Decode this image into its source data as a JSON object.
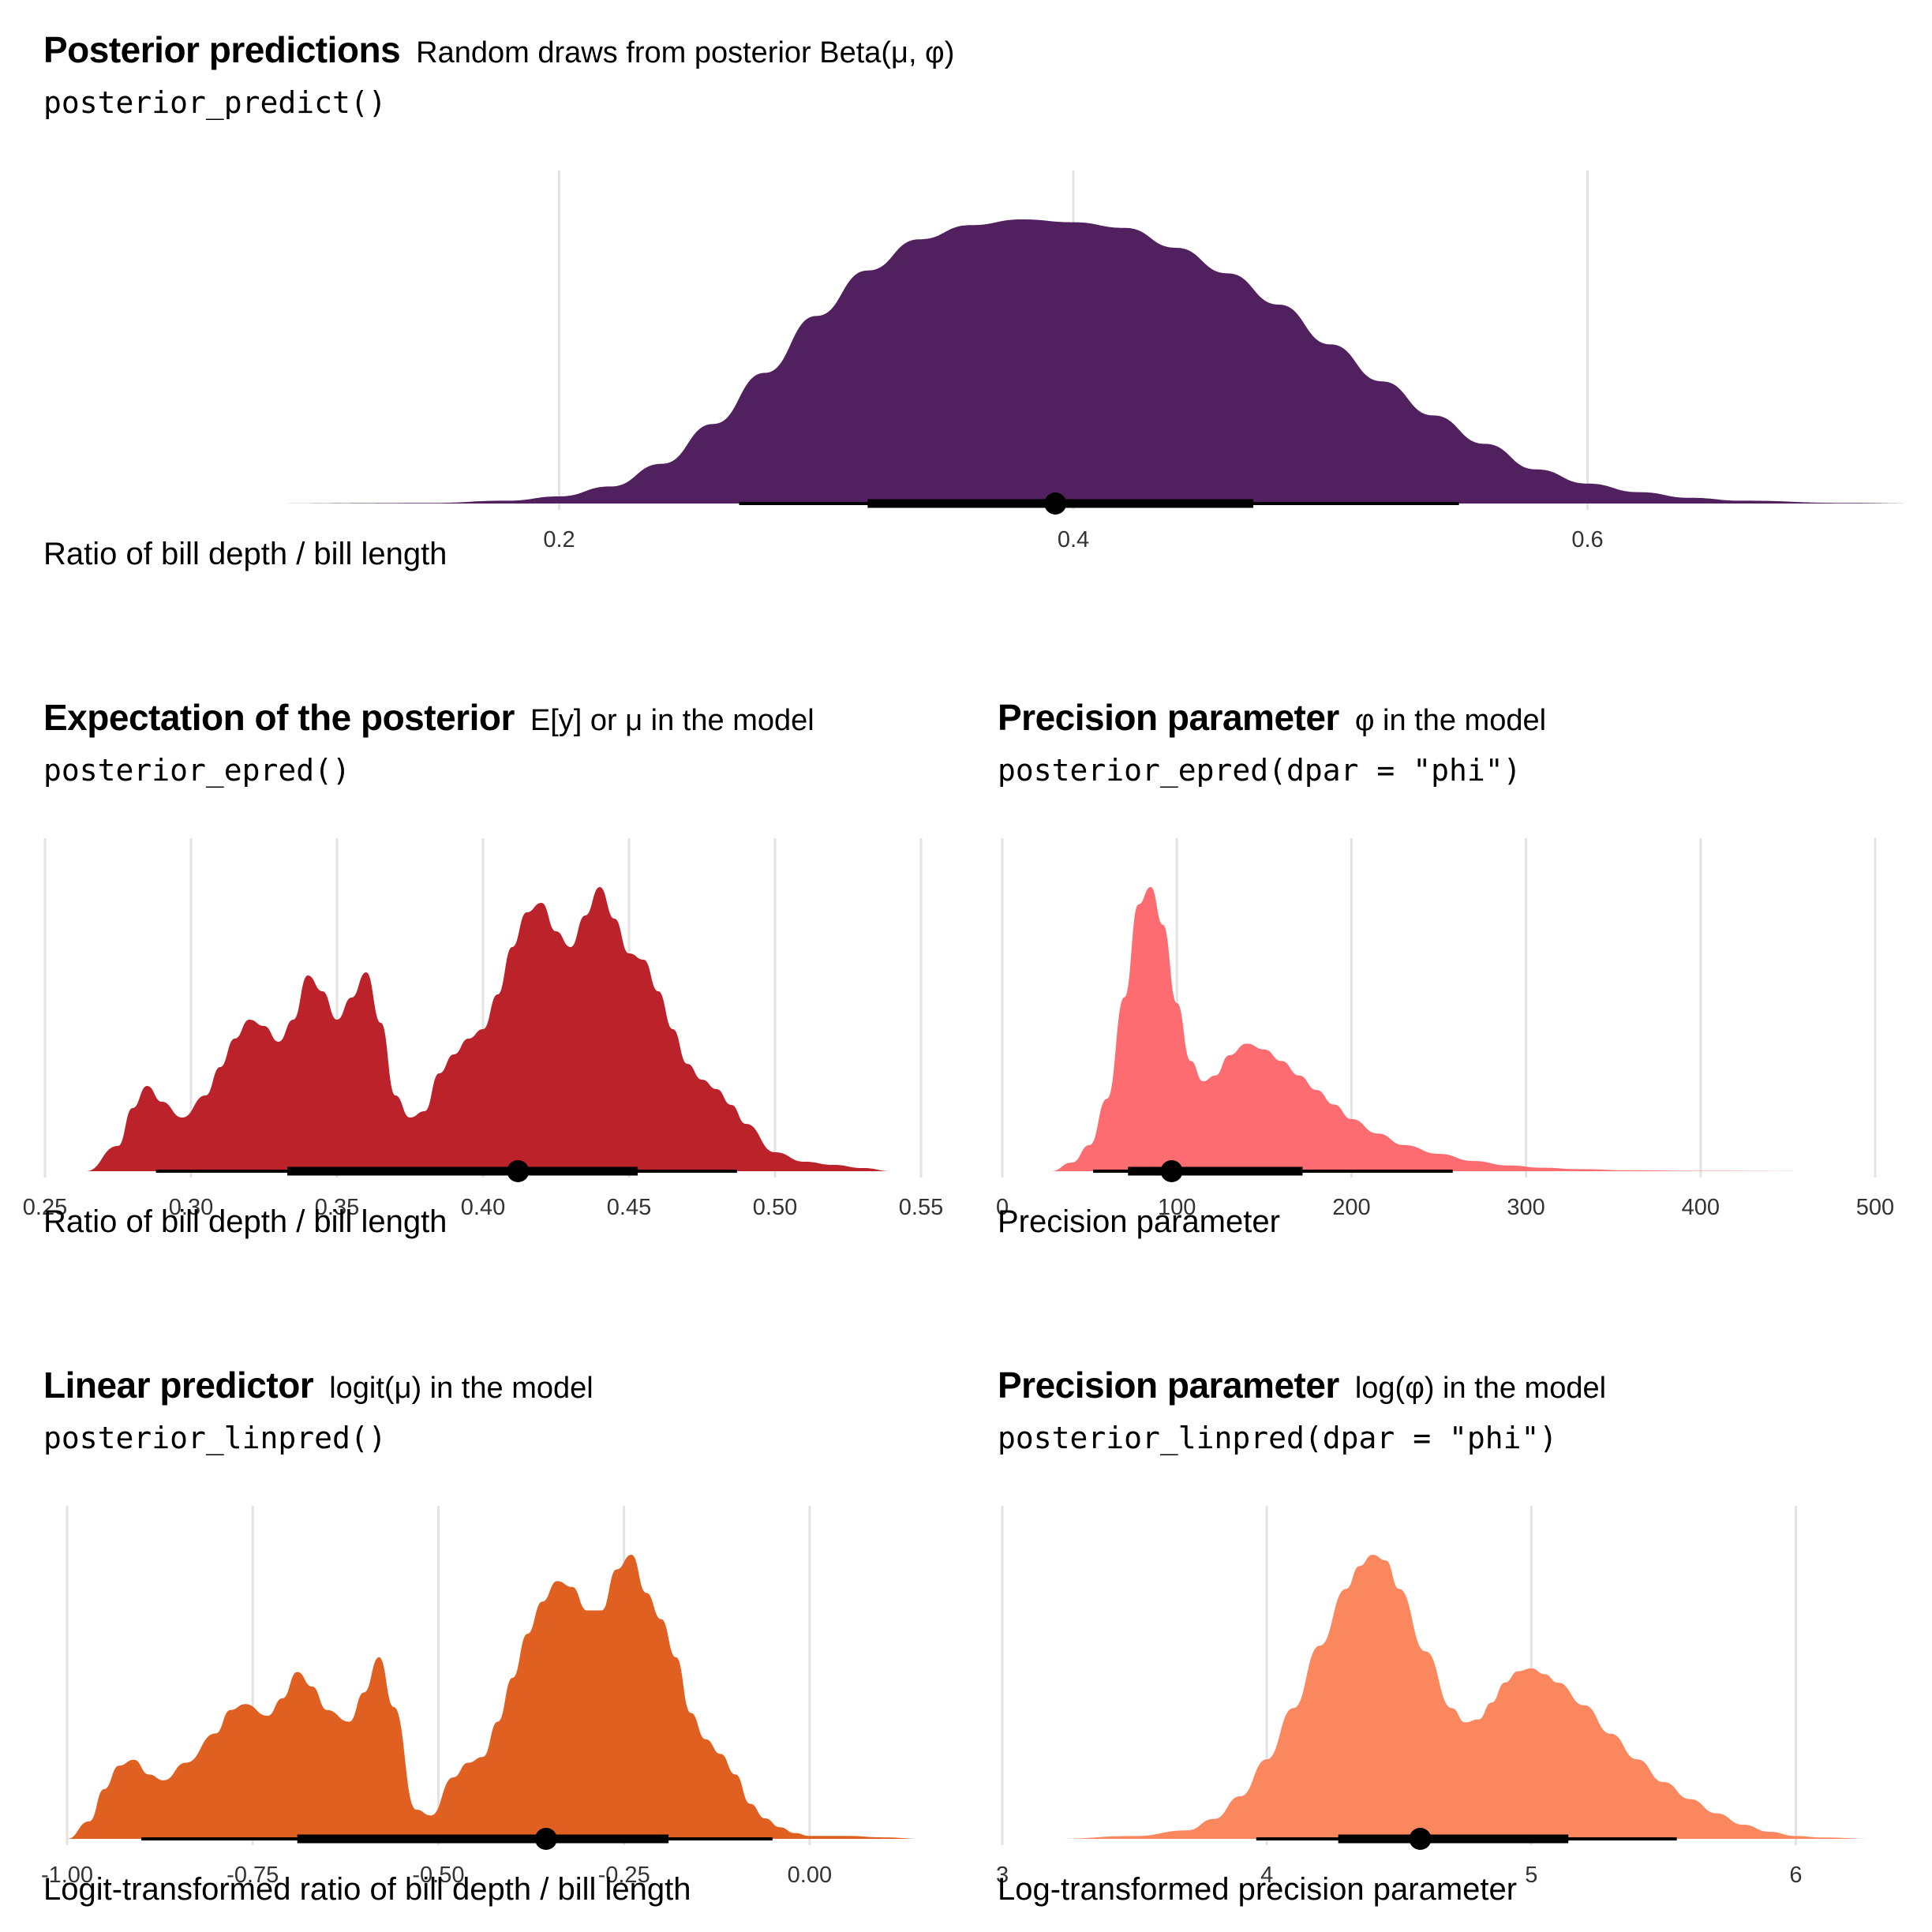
{
  "panels": [
    {
      "id": "predict",
      "title": "Posterior predictions",
      "subtitle": "Random draws from posterior Beta(μ, φ)",
      "code": "posterior_predict()",
      "xlabel": "Ratio of bill depth / bill length",
      "fill": "#51205E"
    },
    {
      "id": "epred",
      "title": "Expectation of the posterior",
      "subtitle": "E[y] or μ in the model",
      "code": "posterior_epred()",
      "xlabel": "Ratio of bill depth / bill length",
      "fill": "#BB2229"
    },
    {
      "id": "phi",
      "title": "Precision parameter",
      "subtitle": "φ in the model",
      "code": "posterior_epred(dpar = \"phi\")",
      "xlabel": "Precision parameter",
      "fill": "#FC6C70"
    },
    {
      "id": "linpred",
      "title": "Linear predictor",
      "subtitle": "logit(μ) in the model",
      "code": "posterior_linpred()",
      "xlabel": "Logit-transformed ratio of bill depth / bill length",
      "fill": "#E06021"
    },
    {
      "id": "logphi",
      "title": "Precision parameter",
      "subtitle": "log(φ) in the model",
      "code": "posterior_linpred(dpar = \"phi\")",
      "xlabel": "Log-transformed precision parameter",
      "fill": "#FB875E"
    }
  ],
  "chart_data": [
    {
      "type": "area",
      "title": "Posterior predictions",
      "subtitle": "Random draws from posterior Beta(μ, φ)",
      "xlabel": "Ratio of bill depth / bill length",
      "ylabel": "",
      "xlim": [
        0.07,
        0.73
      ],
      "xticks": [
        0.2,
        0.4,
        0.6
      ],
      "xtick_labels": [
        "0.2",
        "0.4",
        "0.6"
      ],
      "grid": true,
      "density": {
        "x": [
          0.07,
          0.15,
          0.18,
          0.2,
          0.22,
          0.24,
          0.26,
          0.28,
          0.3,
          0.32,
          0.34,
          0.36,
          0.38,
          0.4,
          0.42,
          0.44,
          0.46,
          0.48,
          0.5,
          0.52,
          0.54,
          0.56,
          0.58,
          0.6,
          0.62,
          0.64,
          0.66,
          0.7,
          0.73
        ],
        "y": [
          0,
          0.002,
          0.01,
          0.025,
          0.06,
          0.14,
          0.28,
          0.46,
          0.66,
          0.82,
          0.93,
          0.98,
          1.0,
          0.99,
          0.97,
          0.9,
          0.81,
          0.7,
          0.56,
          0.43,
          0.31,
          0.21,
          0.12,
          0.07,
          0.04,
          0.02,
          0.01,
          0.002,
          0
        ]
      },
      "point_estimate": 0.393,
      "interval_66": [
        0.32,
        0.47
      ],
      "interval_95": [
        0.27,
        0.55
      ]
    },
    {
      "type": "area",
      "title": "Expectation of the posterior",
      "subtitle": "E[y] or μ in the model",
      "xlabel": "Ratio of bill depth / bill length",
      "ylabel": "",
      "xlim": [
        0.25,
        0.55
      ],
      "xticks": [
        0.25,
        0.3,
        0.35,
        0.4,
        0.45,
        0.5,
        0.55
      ],
      "xtick_labels": [
        "0.25",
        "0.30",
        "0.35",
        "0.40",
        "0.45",
        "0.50",
        "0.55"
      ],
      "grid": true,
      "density": {
        "x": [
          0.264,
          0.275,
          0.28,
          0.285,
          0.29,
          0.297,
          0.305,
          0.31,
          0.315,
          0.32,
          0.325,
          0.33,
          0.335,
          0.34,
          0.345,
          0.35,
          0.355,
          0.36,
          0.365,
          0.37,
          0.375,
          0.38,
          0.385,
          0.39,
          0.395,
          0.4,
          0.405,
          0.41,
          0.415,
          0.42,
          0.425,
          0.43,
          0.435,
          0.44,
          0.445,
          0.45,
          0.455,
          0.46,
          0.465,
          0.47,
          0.475,
          0.48,
          0.485,
          0.49,
          0.5,
          0.51,
          0.52,
          0.53,
          0.54
        ],
        "y": [
          0,
          0.08,
          0.2,
          0.27,
          0.22,
          0.17,
          0.24,
          0.33,
          0.42,
          0.48,
          0.46,
          0.41,
          0.48,
          0.62,
          0.57,
          0.48,
          0.55,
          0.63,
          0.47,
          0.24,
          0.17,
          0.19,
          0.31,
          0.37,
          0.42,
          0.45,
          0.56,
          0.71,
          0.82,
          0.85,
          0.76,
          0.71,
          0.81,
          0.9,
          0.8,
          0.69,
          0.67,
          0.57,
          0.45,
          0.34,
          0.29,
          0.26,
          0.21,
          0.15,
          0.06,
          0.03,
          0.02,
          0.01,
          0
        ]
      },
      "point_estimate": 0.412,
      "interval_66": [
        0.333,
        0.453
      ],
      "interval_95": [
        0.288,
        0.487
      ]
    },
    {
      "type": "area",
      "title": "Precision parameter",
      "subtitle": "φ in the model",
      "xlabel": "Precision parameter",
      "ylabel": "",
      "xlim": [
        0,
        500
      ],
      "xticks": [
        0,
        100,
        200,
        300,
        400,
        500
      ],
      "xtick_labels": [
        "0",
        "100",
        "200",
        "300",
        "400",
        "500"
      ],
      "grid": true,
      "density": {
        "x": [
          28,
          40,
          50,
          60,
          70,
          78,
          85,
          92,
          100,
          108,
          115,
          122,
          130,
          140,
          150,
          160,
          170,
          180,
          190,
          200,
          215,
          230,
          250,
          270,
          290,
          310,
          330,
          360,
          400,
          480
        ],
        "y": [
          0,
          0.03,
          0.09,
          0.25,
          0.6,
          0.92,
          0.98,
          0.85,
          0.58,
          0.38,
          0.31,
          0.33,
          0.4,
          0.44,
          0.42,
          0.38,
          0.33,
          0.28,
          0.23,
          0.18,
          0.13,
          0.09,
          0.06,
          0.035,
          0.02,
          0.012,
          0.007,
          0.003,
          0.001,
          0
        ]
      },
      "point_estimate": 97,
      "interval_66": [
        72,
        172
      ],
      "interval_95": [
        52,
        258
      ]
    },
    {
      "type": "area",
      "title": "Linear predictor",
      "subtitle": "logit(μ) in the model",
      "xlabel": "Logit-transformed ratio of bill depth / bill length",
      "ylabel": "",
      "xlim": [
        -1.0,
        0.15
      ],
      "xticks": [
        -1.0,
        -0.75,
        -0.5,
        -0.25,
        0.0
      ],
      "xtick_labels": [
        "-1.00",
        "-0.75",
        "-0.50",
        "-0.25",
        "0.00"
      ],
      "grid": true,
      "density": {
        "x": [
          -1.0,
          -0.97,
          -0.95,
          -0.93,
          -0.91,
          -0.89,
          -0.87,
          -0.84,
          -0.8,
          -0.78,
          -0.76,
          -0.73,
          -0.71,
          -0.69,
          -0.67,
          -0.65,
          -0.62,
          -0.6,
          -0.58,
          -0.56,
          -0.53,
          -0.51,
          -0.48,
          -0.46,
          -0.44,
          -0.42,
          -0.4,
          -0.38,
          -0.36,
          -0.34,
          -0.32,
          -0.3,
          -0.28,
          -0.26,
          -0.24,
          -0.22,
          -0.2,
          -0.18,
          -0.16,
          -0.14,
          -0.12,
          -0.1,
          -0.08,
          -0.06,
          -0.04,
          -0.02,
          0.0,
          0.05,
          0.1,
          0.15
        ],
        "y": [
          0,
          0.06,
          0.17,
          0.25,
          0.27,
          0.22,
          0.2,
          0.26,
          0.36,
          0.44,
          0.46,
          0.42,
          0.48,
          0.57,
          0.52,
          0.44,
          0.4,
          0.5,
          0.62,
          0.45,
          0.1,
          0.08,
          0.21,
          0.26,
          0.28,
          0.4,
          0.55,
          0.7,
          0.81,
          0.88,
          0.86,
          0.78,
          0.78,
          0.92,
          0.97,
          0.84,
          0.75,
          0.62,
          0.43,
          0.34,
          0.29,
          0.22,
          0.12,
          0.07,
          0.04,
          0.02,
          0.01,
          0.01,
          0.005,
          0
        ]
      },
      "point_estimate": -0.355,
      "interval_66": [
        -0.69,
        -0.19
      ],
      "interval_95": [
        -0.9,
        -0.05
      ]
    },
    {
      "type": "area",
      "title": "Precision parameter",
      "subtitle": "log(φ) in the model",
      "xlabel": "Log-transformed precision parameter",
      "ylabel": "",
      "xlim": [
        3,
        6.3
      ],
      "xticks": [
        3,
        4,
        5,
        6
      ],
      "xtick_labels": [
        "3",
        "4",
        "5",
        "6"
      ],
      "grid": true,
      "density": {
        "x": [
          3.2,
          3.5,
          3.7,
          3.8,
          3.9,
          4.0,
          4.1,
          4.2,
          4.3,
          4.35,
          4.4,
          4.45,
          4.5,
          4.6,
          4.7,
          4.75,
          4.8,
          4.85,
          4.9,
          4.95,
          5.0,
          5.05,
          5.1,
          5.2,
          5.3,
          5.4,
          5.5,
          5.6,
          5.7,
          5.8,
          5.9,
          6.0,
          6.1,
          6.3
        ],
        "y": [
          0,
          0.01,
          0.03,
          0.07,
          0.15,
          0.28,
          0.46,
          0.68,
          0.88,
          0.96,
          1.0,
          0.98,
          0.88,
          0.66,
          0.46,
          0.41,
          0.42,
          0.48,
          0.55,
          0.59,
          0.6,
          0.58,
          0.55,
          0.47,
          0.37,
          0.28,
          0.2,
          0.14,
          0.09,
          0.05,
          0.025,
          0.01,
          0.005,
          0
        ]
      },
      "point_estimate": 4.58,
      "interval_66": [
        4.27,
        5.14
      ],
      "interval_95": [
        3.96,
        5.55
      ]
    }
  ]
}
